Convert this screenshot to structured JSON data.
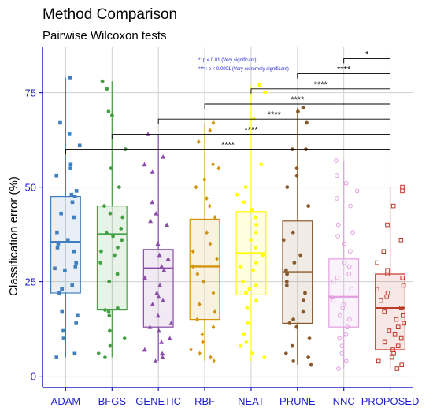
{
  "chart_data": {
    "type": "box",
    "title": "Method Comparison",
    "subtitle": "Pairwise Wilcoxon tests",
    "xlabel": "",
    "ylabel": "Classification error (%)",
    "ylim": [
      -3,
      87
    ],
    "yticks": [
      0,
      25,
      50,
      75
    ],
    "grid": true,
    "legend_lines": [
      "*: p < 0.01 (Very significant)",
      "****: p < 0.0001 (Very extremely significant)"
    ],
    "colors": {
      "axis": "#1f1fcc",
      "grid": "#d0d0d0"
    },
    "series": [
      {
        "name": "ADAM",
        "color": "#3f7fbf",
        "marker": "square",
        "filled": true,
        "box": {
          "q1": 22,
          "median": 35.5,
          "q3": 47.5,
          "lower": 5,
          "upper": 79
        },
        "points": [
          79,
          67,
          64,
          61,
          56,
          55,
          53,
          49,
          48,
          47.5,
          46,
          43,
          42,
          38,
          36,
          35,
          34,
          33,
          30,
          29,
          28.5,
          28,
          24,
          23,
          22,
          17,
          16,
          14,
          12,
          10,
          6,
          5
        ]
      },
      {
        "name": "BFGS",
        "color": "#44a044",
        "marker": "circle",
        "filled": true,
        "box": {
          "q1": 17.5,
          "median": 37.5,
          "q3": 45,
          "lower": 5,
          "upper": 78
        },
        "points": [
          78,
          76,
          70,
          69,
          60,
          55,
          50,
          45,
          43,
          42,
          39,
          38,
          37,
          36,
          34,
          33,
          32,
          30,
          27,
          25,
          18,
          17.5,
          17,
          16,
          12,
          10,
          8,
          6,
          5
        ]
      },
      {
        "name": "GENETIC",
        "color": "#8a4ca8",
        "marker": "triangle",
        "filled": true,
        "box": {
          "q1": 13,
          "median": 28.5,
          "q3": 33.5,
          "lower": 4,
          "upper": 64
        },
        "points": [
          64,
          58,
          56,
          54,
          46,
          43,
          41,
          40,
          35,
          32,
          31,
          29,
          28,
          26,
          24,
          22,
          21,
          20,
          19,
          16,
          14,
          13,
          12,
          10,
          9,
          7,
          6,
          5,
          4
        ]
      },
      {
        "name": "RBF",
        "color": "#d2930a",
        "marker": "diamond",
        "filled": true,
        "box": {
          "q1": 15,
          "median": 29,
          "q3": 41.5,
          "lower": 4,
          "upper": 67
        },
        "points": [
          67,
          65,
          62,
          56,
          55,
          52,
          50,
          47,
          45,
          42,
          38,
          35,
          33,
          31,
          29,
          27,
          25,
          22,
          19,
          17,
          15,
          13,
          11,
          9,
          7,
          6,
          5,
          4
        ]
      },
      {
        "name": "NEAT",
        "color": "#ffff00",
        "marker": "circle",
        "filled": true,
        "box": {
          "q1": 21.5,
          "median": 32.5,
          "q3": 43.5,
          "lower": 4,
          "upper": 77
        },
        "points": [
          77,
          75,
          68,
          56,
          50,
          48,
          46,
          44,
          42,
          40,
          38,
          36,
          34,
          32,
          30,
          29,
          28,
          25,
          24,
          23,
          22,
          20,
          18,
          14,
          11,
          9,
          8,
          6,
          5
        ]
      },
      {
        "name": "PRUNE",
        "color": "#8b5a2b",
        "marker": "circle",
        "filled": true,
        "box": {
          "q1": 14,
          "median": 27.5,
          "q3": 41,
          "lower": 3,
          "upper": 71
        },
        "points": [
          71,
          70,
          67,
          60,
          60,
          55,
          53,
          50,
          45,
          38,
          36,
          32,
          30,
          28,
          27,
          25,
          24,
          22,
          20,
          17,
          15,
          14,
          13,
          10,
          8,
          6,
          5,
          4,
          3
        ]
      },
      {
        "name": "NNC",
        "color": "#e2a0e0",
        "marker": "circle",
        "filled": false,
        "box": {
          "q1": 13,
          "median": 21,
          "q3": 31,
          "lower": 2,
          "upper": 57
        },
        "points": [
          57,
          53,
          51,
          49,
          47,
          45,
          40,
          38,
          37,
          35,
          33,
          30,
          29,
          27,
          26,
          25,
          23,
          21,
          20,
          19,
          18,
          16,
          15,
          13,
          11,
          10,
          8,
          6,
          4,
          2
        ]
      },
      {
        "name": "PROPOSED",
        "color": "#c0392b",
        "marker": "square",
        "filled": false,
        "box": {
          "q1": 7,
          "median": 18,
          "q3": 27,
          "lower": 2,
          "upper": 50
        },
        "points": [
          50,
          49,
          45,
          40,
          36,
          33,
          30,
          28,
          27,
          26,
          24,
          23,
          22,
          21,
          20,
          18,
          17,
          16,
          15,
          14,
          13,
          12,
          11,
          10,
          9,
          8,
          7,
          6,
          5,
          4,
          3,
          2
        ]
      }
    ],
    "comparisons": [
      {
        "from": "NNC",
        "to": "PROPOSED",
        "y": 84,
        "label": "*"
      },
      {
        "from": "PRUNE",
        "to": "PROPOSED",
        "y": 80,
        "label": "****"
      },
      {
        "from": "NEAT",
        "to": "PROPOSED",
        "y": 76,
        "label": "****"
      },
      {
        "from": "RBF",
        "to": "PROPOSED",
        "y": 72,
        "label": "****"
      },
      {
        "from": "GENETIC",
        "to": "PROPOSED",
        "y": 68,
        "label": "****"
      },
      {
        "from": "BFGS",
        "to": "PROPOSED",
        "y": 64,
        "label": "****"
      },
      {
        "from": "ADAM",
        "to": "PROPOSED",
        "y": 60,
        "label": "****"
      }
    ]
  }
}
